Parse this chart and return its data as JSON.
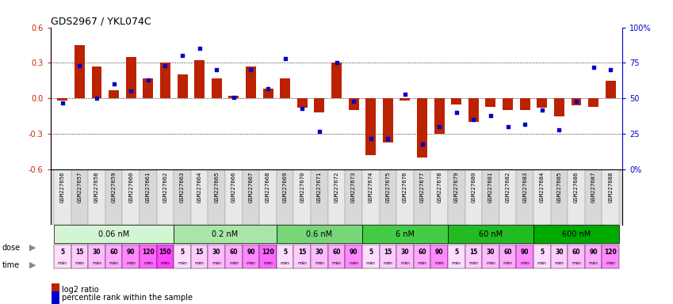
{
  "title": "GDS2967 / YKL074C",
  "samples": [
    "GSM227656",
    "GSM227657",
    "GSM227658",
    "GSM227659",
    "GSM227660",
    "GSM227661",
    "GSM227662",
    "GSM227663",
    "GSM227664",
    "GSM227665",
    "GSM227666",
    "GSM227667",
    "GSM227668",
    "GSM227669",
    "GSM227670",
    "GSM227671",
    "GSM227672",
    "GSM227673",
    "GSM227674",
    "GSM227675",
    "GSM227676",
    "GSM227677",
    "GSM227678",
    "GSM227679",
    "GSM227680",
    "GSM227681",
    "GSM227682",
    "GSM227683",
    "GSM227684",
    "GSM227685",
    "GSM227686",
    "GSM227687",
    "GSM227688"
  ],
  "log2_ratio": [
    -0.02,
    0.45,
    0.27,
    0.07,
    0.35,
    0.17,
    0.3,
    0.2,
    0.32,
    0.17,
    0.02,
    0.27,
    0.08,
    0.17,
    -0.08,
    -0.12,
    0.3,
    -0.1,
    -0.48,
    -0.37,
    -0.02,
    -0.5,
    -0.3,
    -0.05,
    -0.2,
    -0.07,
    -0.1,
    -0.1,
    -0.08,
    -0.15,
    -0.06,
    -0.07,
    0.15
  ],
  "percentile": [
    47,
    73,
    50,
    60,
    55,
    63,
    73,
    80,
    85,
    70,
    51,
    70,
    57,
    78,
    43,
    27,
    75,
    48,
    22,
    22,
    53,
    18,
    30,
    40,
    35,
    38,
    30,
    32,
    42,
    28,
    48,
    72,
    70
  ],
  "doses": [
    {
      "label": "0.06 nM",
      "start": 0,
      "end": 7
    },
    {
      "label": "0.2 nM",
      "start": 7,
      "end": 13
    },
    {
      "label": "0.6 nM",
      "start": 13,
      "end": 18
    },
    {
      "label": "6 nM",
      "start": 18,
      "end": 23
    },
    {
      "label": "60 nM",
      "start": 23,
      "end": 28
    },
    {
      "label": "600 nM",
      "start": 28,
      "end": 33
    }
  ],
  "dose_colors": [
    "#d4f5d4",
    "#a8e6a8",
    "#77d677",
    "#44cc44",
    "#22bb22",
    "#00aa00"
  ],
  "time_sequence": [
    [
      5,
      15,
      30,
      60,
      90,
      120,
      150
    ],
    [
      5,
      15,
      30,
      60,
      90,
      120
    ],
    [
      5,
      15,
      30,
      60,
      90
    ],
    [
      5,
      15,
      30,
      60,
      90
    ],
    [
      5,
      15,
      30,
      60,
      90
    ],
    [
      5,
      30,
      60,
      90,
      120
    ]
  ],
  "pink_shades": [
    "#ffddff",
    "#ffccff",
    "#ffbbff",
    "#ffaaff",
    "#ff88ff",
    "#ff66ff",
    "#ff44ff"
  ],
  "bar_color": "#bb2200",
  "dot_color": "#0000cc",
  "label_bg": "#dddddd",
  "ylim": [
    -0.6,
    0.6
  ],
  "yticks_left": [
    -0.6,
    -0.3,
    0.0,
    0.3,
    0.6
  ],
  "yticks_right": [
    0,
    25,
    50,
    75,
    100
  ],
  "right_labels": [
    "0%",
    "25",
    "50",
    "75",
    "100%"
  ],
  "bg_color": "#ffffff"
}
